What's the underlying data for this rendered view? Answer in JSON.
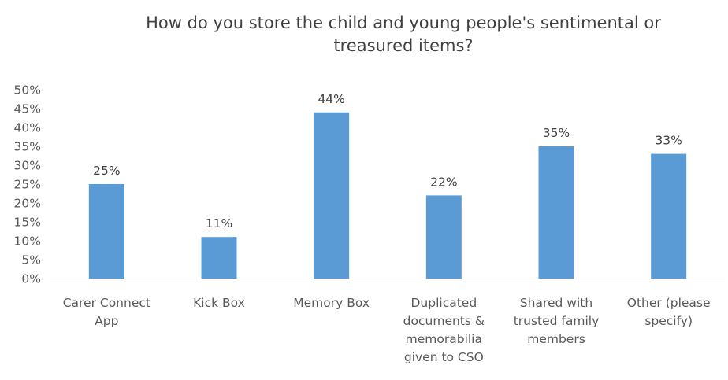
{
  "chart_data": {
    "type": "bar",
    "title_lines": [
      "How do you store the child and young people's sentimental or",
      "treasured items?"
    ],
    "categories": [
      [
        "Carer Connect",
        "App"
      ],
      [
        "Kick Box"
      ],
      [
        "Memory Box"
      ],
      [
        "Duplicated",
        "documents &",
        "memorabilia",
        "given to CSO"
      ],
      [
        "Shared with",
        "trusted family",
        "members"
      ],
      [
        "Other (please",
        "specify)"
      ]
    ],
    "values": [
      25,
      11,
      44,
      22,
      35,
      33
    ],
    "data_labels": [
      "25%",
      "11%",
      "44%",
      "22%",
      "35%",
      "33%"
    ],
    "ytick_labels": [
      "0%",
      "5%",
      "10%",
      "15%",
      "20%",
      "25%",
      "30%",
      "35%",
      "40%",
      "45%",
      "50%"
    ],
    "ylim": [
      0,
      50
    ],
    "grid": false,
    "legend": "none",
    "bar_color": "#5B9BD5"
  }
}
